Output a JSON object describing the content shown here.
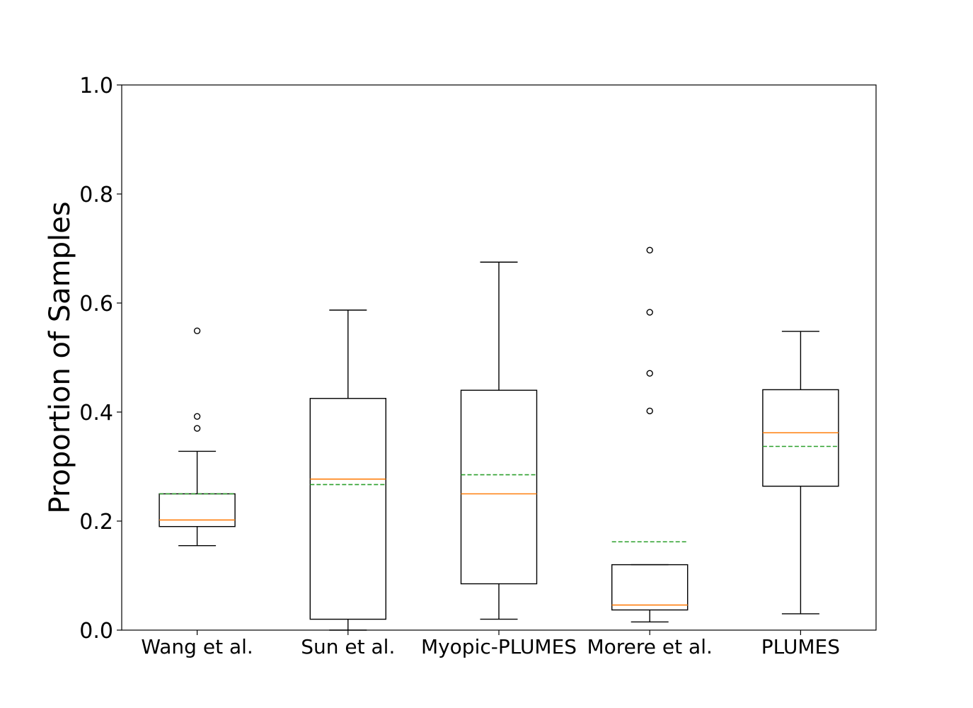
{
  "chart_data": {
    "type": "box",
    "ylabel": "Proportion of Samples",
    "ylim": [
      0.0,
      1.0
    ],
    "yticks": [
      {
        "value": 0.0,
        "label": "0.0"
      },
      {
        "value": 0.2,
        "label": "0.2"
      },
      {
        "value": 0.4,
        "label": "0.4"
      },
      {
        "value": 0.6,
        "label": "0.6"
      },
      {
        "value": 0.8,
        "label": "0.8"
      },
      {
        "value": 1.0,
        "label": "1.0"
      }
    ],
    "grid": false,
    "colors": {
      "box": "#000000",
      "median": "#ff7f0e",
      "mean": "#2ca02c",
      "flier": "#000000"
    },
    "boxes": [
      {
        "label": "Wang et al.",
        "whislo": 0.155,
        "q1": 0.19,
        "median": 0.202,
        "q3": 0.25,
        "whishi": 0.328,
        "mean": 0.25,
        "fliers": [
          0.37,
          0.392,
          0.549
        ]
      },
      {
        "label": "Sun et al.",
        "whislo": 0.0,
        "q1": 0.02,
        "median": 0.277,
        "q3": 0.425,
        "whishi": 0.587,
        "mean": 0.267,
        "fliers": []
      },
      {
        "label": "Myopic-PLUMES",
        "whislo": 0.02,
        "q1": 0.085,
        "median": 0.25,
        "q3": 0.44,
        "whishi": 0.675,
        "mean": 0.285,
        "fliers": []
      },
      {
        "label": "Morere et al.",
        "whislo": 0.015,
        "q1": 0.037,
        "median": 0.046,
        "q3": 0.12,
        "whishi": 0.12,
        "mean": 0.162,
        "fliers": [
          0.402,
          0.471,
          0.583,
          0.697
        ]
      },
      {
        "label": "PLUMES",
        "whislo": 0.03,
        "q1": 0.264,
        "median": 0.362,
        "q3": 0.441,
        "whishi": 0.548,
        "mean": 0.337,
        "fliers": []
      }
    ]
  }
}
